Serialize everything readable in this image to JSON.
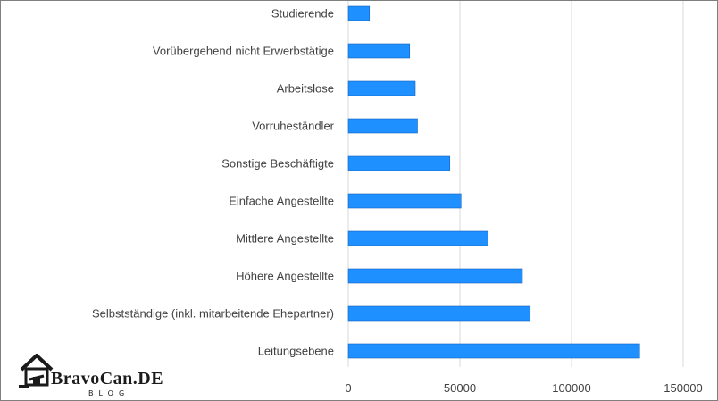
{
  "chart_data": {
    "type": "bar",
    "orientation": "horizontal",
    "categories": [
      "Studierende",
      "Vorübergehend nicht Erwerbstätige",
      "Arbeitslose",
      "Vorruheständler",
      "Sonstige Beschäftigte",
      "Einfache Angestellte",
      "Mittlere Angestellte",
      "Höhere Angestellte",
      "Selbstständige (inkl. mitarbeitende Ehepartner)",
      "Leitungsebene"
    ],
    "values": [
      9500,
      27500,
      30000,
      31000,
      45500,
      50500,
      62500,
      78000,
      81500,
      130500
    ],
    "xlim": [
      0,
      150000
    ],
    "xticks": [
      0,
      50000,
      100000,
      150000
    ],
    "xtick_labels": [
      "0",
      "50000",
      "100000",
      "150000"
    ],
    "grid": "vertical",
    "bar_color": "#1e90ff",
    "bar_edge_color": "#1565c0",
    "title": "",
    "xlabel": "",
    "ylabel": ""
  },
  "watermark": {
    "title": "BravoCan.DE",
    "subtitle": "BLOG"
  }
}
